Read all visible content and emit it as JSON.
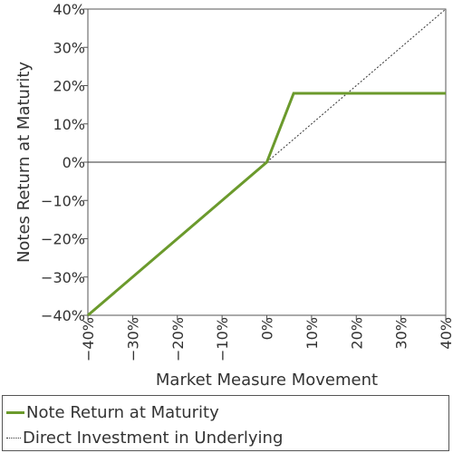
{
  "chart_data": {
    "type": "line",
    "xlabel": "Market Measure Movement",
    "ylabel": "Notes Return at Maturity",
    "xlim": [
      -40,
      40
    ],
    "ylim": [
      -40,
      40
    ],
    "x_ticks": [
      -40,
      -30,
      -20,
      -10,
      0,
      10,
      20,
      30,
      40
    ],
    "y_ticks": [
      -40,
      -30,
      -20,
      -10,
      0,
      10,
      20,
      30,
      40
    ],
    "x_tick_labels": [
      "−40%",
      "−30%",
      "−20%",
      "−10%",
      "0%",
      "10%",
      "20%",
      "30%",
      "40%"
    ],
    "y_tick_labels": [
      "−40%",
      "−30%",
      "−20%",
      "−10%",
      "0%",
      "10%",
      "20%",
      "30%",
      "40%"
    ],
    "grid": false,
    "zero_line": true,
    "legend_position": "bottom",
    "series": [
      {
        "name": "Note Return at Maturity",
        "color": "#6b9a2c",
        "style": "solid",
        "points": [
          [
            -40,
            -40
          ],
          [
            0,
            0
          ],
          [
            6,
            18
          ],
          [
            40,
            18
          ]
        ]
      },
      {
        "name": "Direct Investment in Underlying",
        "color": "#333333",
        "style": "dotted",
        "points": [
          [
            -40,
            -40
          ],
          [
            40,
            40
          ]
        ]
      }
    ]
  }
}
